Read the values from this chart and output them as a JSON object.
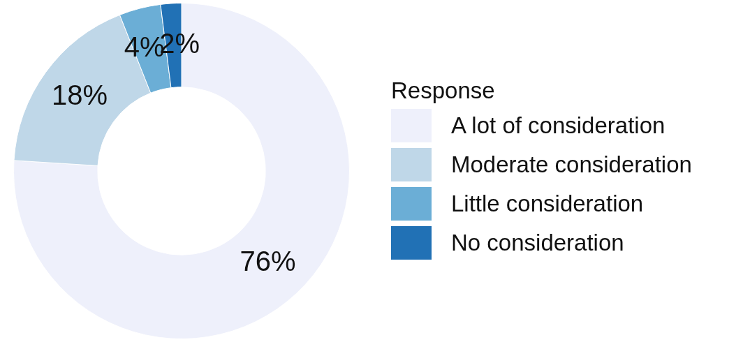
{
  "chart_data": {
    "type": "donut",
    "legend_title": "Response",
    "categories": [
      "A lot of consideration",
      "Moderate consideration",
      "Little consideration",
      "No consideration"
    ],
    "values": [
      76,
      18,
      4,
      2
    ],
    "value_labels": [
      "76%",
      "18%",
      "4%",
      "2%"
    ],
    "colors": [
      "#eef0fb",
      "#bfd7e8",
      "#6baed6",
      "#2171b5"
    ],
    "legend": "right"
  }
}
